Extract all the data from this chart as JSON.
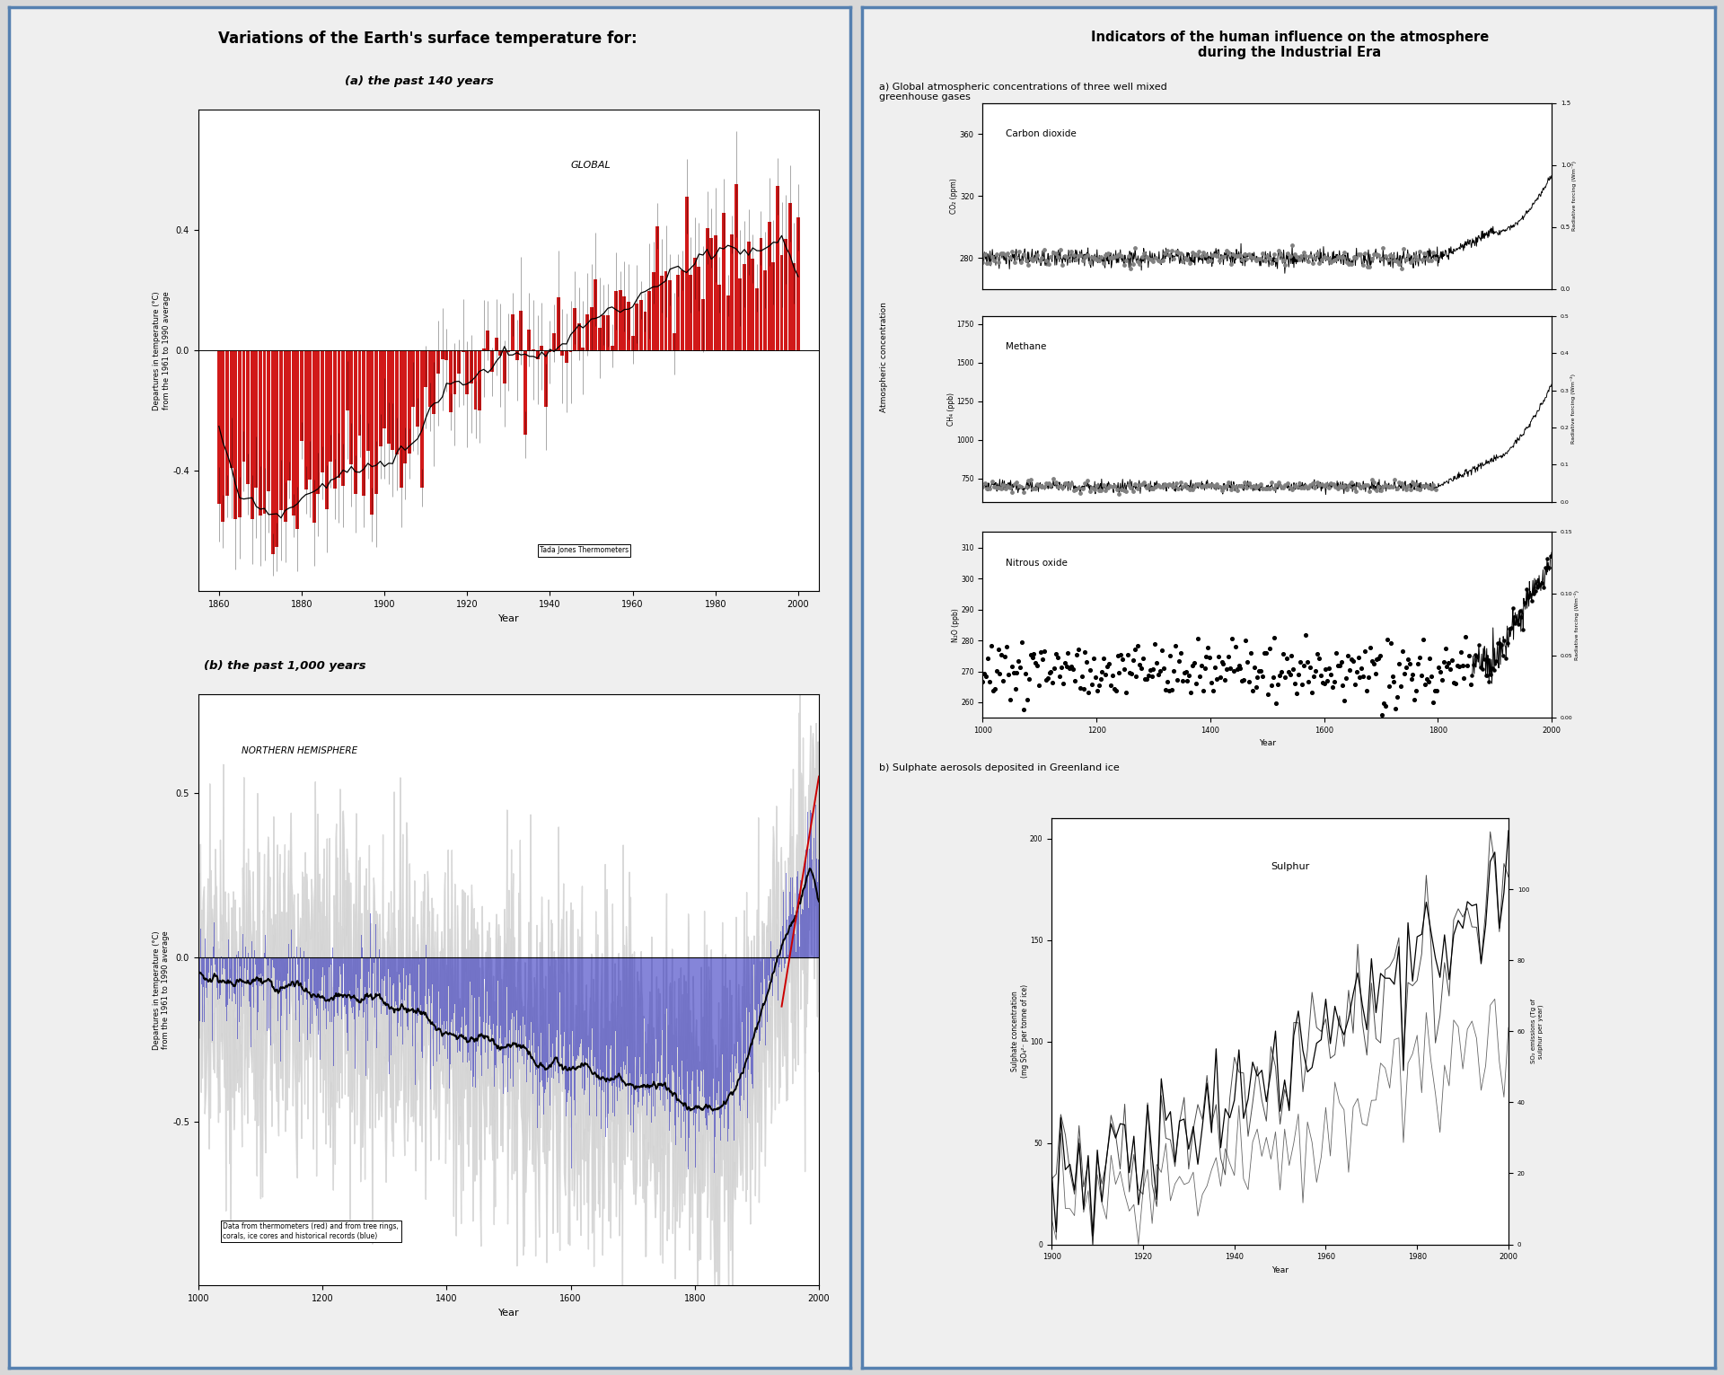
{
  "main_title_left": "Variations of the Earth's surface temperature for:",
  "main_title_right": "Indicators of the human influence on the atmosphere\nduring the Industrial Era",
  "panel_a_title": "(a) the past 140 years",
  "panel_b_title": "(b) the past 1,000 years",
  "panel_a_label": "GLOBAL",
  "panel_b_label": "NORTHERN HEMISPHERE",
  "panel_a_ylabel": "Departures in temperature (°C)\nfrom the 1961 to 1990 average",
  "panel_b_ylabel": "Departures in temperature (°C)\nfrom the 1961 to 1990 average",
  "panel_a_xlabel": "Year",
  "panel_b_xlabel": "Year",
  "panel_a_legend": "Tada Jones Thermometers",
  "panel_b_legend": "Data from thermometers (red) and from tree rings,\ncorals, ice cores and historical records (blue)",
  "right_section_a_title": "a) Global atmospheric concentrations of three well mixed\ngreenhouse gases",
  "right_section_b_title": "b) Sulphate aerosols deposited in Greenland ice",
  "co2_title": "Carbon dioxide",
  "ch4_title": "Methane",
  "n2o_title": "Nitrous oxide",
  "sulphur_title": "Sulphur",
  "co2_ylabel": "CO₂ (ppm)",
  "ch4_ylabel": "CH₄ (ppb)",
  "n2o_ylabel": "N₂O (ppb)",
  "co2_ylabel2": "Radiative forcing (Wm⁻²)",
  "ch4_ylabel2": "Radiative forcing (Wm⁻²)",
  "n2o_ylabel2": "Radiative forcing (Wm⁻²)",
  "atm_conc_ylabel": "Atmospheric concentration",
  "sulphate_ylabel": "Sulphate concentration\n(mg SO₄²⁻ per tonne of ice)",
  "so2_ylabel2": "SO₂ emissions (Tg of\nsulphur per year)",
  "background_color": "#d8d8d8",
  "left_panel_bg": "#efefef",
  "right_panel_bg": "#efefef",
  "border_color": "#5580b0",
  "bar_color": "#cc0000",
  "line_color_black": "#000000",
  "line_color_blue": "#2222bb",
  "line_color_red": "#cc0000",
  "line_color_gray": "#aaaaaa"
}
